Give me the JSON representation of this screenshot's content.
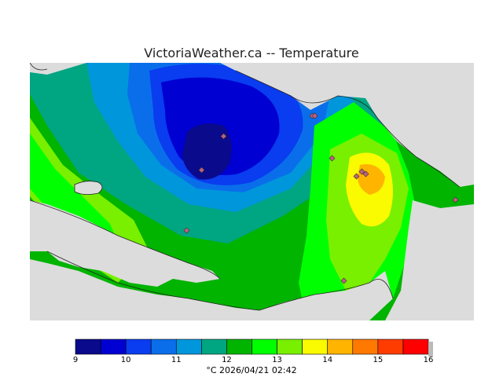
{
  "title": "VictoriaWeather.ca -- Temperature",
  "caption_unit": "°C",
  "caption_timestamp": "2026/04/21 02:42",
  "legend": {
    "labels": [
      "9",
      "10",
      "11",
      "12",
      "13",
      "14",
      "15",
      "16"
    ],
    "colors": [
      "#0a0a8c",
      "#0000d2",
      "#0a3cf0",
      "#0a6eeb",
      "#0096dc",
      "#00a582",
      "#00b400",
      "#00ff00",
      "#78f000",
      "#fafa00",
      "#ffb400",
      "#ff7800",
      "#ff3c00",
      "#ff0000"
    ]
  },
  "colors": {
    "land_mask": "#dcdcdc",
    "station_marker": "#c06080"
  }
}
